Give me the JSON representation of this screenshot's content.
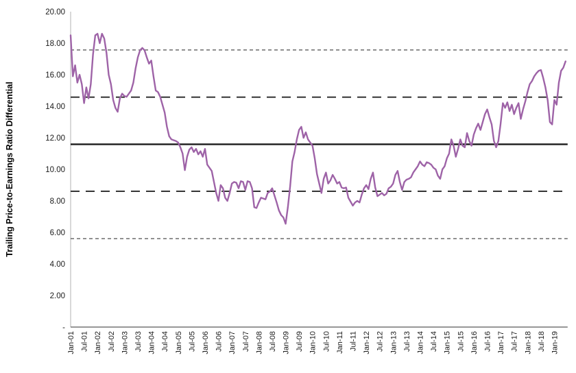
{
  "chart_data": {
    "type": "line",
    "title": "",
    "xlabel": "",
    "ylabel": "Trailing Price-to-Earnings Ratio Differential",
    "ylim": [
      0,
      20
    ],
    "ytick_step": 2,
    "ytick_labels": [
      "20.00",
      "18.00",
      "16.00",
      "14.00",
      "12.00",
      "10.00",
      "8.00",
      "6.00",
      "4.00",
      "2.00",
      "-"
    ],
    "ytick_values": [
      20,
      18,
      16,
      14,
      12,
      10,
      8,
      6,
      4,
      2,
      0
    ],
    "xtick_labels": [
      "Jan-01",
      "Jul-01",
      "Jan-02",
      "Jul-02",
      "Jan-03",
      "Jul-03",
      "Jan-04",
      "Jul-04",
      "Jan-05",
      "Jul-05",
      "Jan-06",
      "Jul-06",
      "Jan-07",
      "Jul-07",
      "Jan-08",
      "Jul-08",
      "Jan-09",
      "Jul-09",
      "Jan-10",
      "Jul-10",
      "Jan-11",
      "Jul-11",
      "Jan-12",
      "Jul-12",
      "Jan-13",
      "Jul-13",
      "Jan-14",
      "Jul-14",
      "Jan-15",
      "Jul-15",
      "Jan-16",
      "Jul-16",
      "Jan-17",
      "Jul-17",
      "Jan-18",
      "Jul-18",
      "Jan-19"
    ],
    "xtick_month_indices": [
      0,
      6,
      12,
      18,
      24,
      30,
      36,
      42,
      48,
      54,
      60,
      66,
      72,
      78,
      84,
      90,
      96,
      102,
      108,
      114,
      120,
      126,
      132,
      138,
      144,
      150,
      156,
      162,
      168,
      174,
      180,
      186,
      192,
      198,
      204,
      210,
      216
    ],
    "x_frequency": "monthly",
    "x_start_label": "Jan-01",
    "x_end_label": "Jun-19",
    "grid": "off",
    "legend_position": "none",
    "series": [
      {
        "name": "trailing-pe-ratio-differential",
        "color": "#9E63A7",
        "values": [
          18.5,
          15.9,
          16.6,
          15.5,
          16.0,
          15.4,
          14.2,
          15.2,
          14.5,
          15.4,
          17.3,
          18.5,
          18.6,
          18.0,
          18.6,
          18.3,
          17.4,
          16.0,
          15.4,
          14.4,
          13.9,
          13.65,
          14.5,
          14.8,
          14.65,
          14.6,
          14.8,
          15.0,
          15.5,
          16.4,
          17.1,
          17.55,
          17.7,
          17.55,
          17.1,
          16.7,
          16.9,
          15.9,
          15.0,
          14.9,
          14.6,
          14.1,
          13.6,
          12.7,
          12.1,
          11.9,
          11.85,
          11.8,
          11.7,
          11.4,
          11.0,
          9.95,
          10.8,
          11.25,
          11.4,
          11.1,
          11.3,
          10.95,
          11.15,
          10.8,
          11.3,
          10.3,
          10.1,
          9.9,
          9.2,
          8.5,
          8.0,
          9.0,
          8.8,
          8.2,
          8.0,
          8.5,
          9.1,
          9.2,
          9.15,
          8.8,
          9.25,
          9.2,
          8.7,
          9.25,
          9.2,
          8.8,
          7.6,
          7.55,
          7.9,
          8.2,
          8.15,
          8.1,
          8.5,
          8.6,
          8.8,
          8.35,
          7.9,
          7.4,
          7.1,
          6.95,
          6.55,
          7.6,
          8.9,
          10.5,
          11.1,
          11.9,
          12.5,
          12.7,
          12.0,
          12.35,
          11.9,
          11.7,
          11.5,
          10.7,
          9.7,
          9.1,
          8.5,
          9.4,
          9.8,
          9.1,
          9.3,
          9.65,
          9.4,
          9.1,
          9.2,
          8.85,
          8.8,
          8.85,
          8.2,
          7.95,
          7.7,
          7.9,
          8.0,
          7.9,
          8.4,
          8.8,
          9.0,
          8.75,
          9.4,
          9.8,
          8.85,
          8.3,
          8.4,
          8.5,
          8.35,
          8.45,
          8.8,
          8.9,
          9.1,
          9.65,
          9.9,
          9.2,
          8.7,
          9.2,
          9.35,
          9.4,
          9.5,
          9.8,
          10.0,
          10.2,
          10.5,
          10.3,
          10.2,
          10.45,
          10.4,
          10.3,
          10.1,
          10.0,
          9.6,
          9.4,
          10.0,
          10.2,
          10.7,
          11.0,
          11.9,
          11.5,
          10.8,
          11.3,
          11.9,
          11.5,
          11.4,
          12.3,
          11.8,
          11.5,
          12.2,
          12.6,
          12.9,
          12.5,
          13.0,
          13.5,
          13.8,
          13.3,
          12.85,
          11.8,
          11.4,
          11.8,
          12.9,
          14.2,
          13.9,
          14.25,
          13.7,
          14.1,
          13.5,
          13.9,
          14.2,
          13.2,
          13.8,
          14.3,
          14.9,
          15.4,
          15.6,
          15.9,
          16.1,
          16.25,
          16.3,
          15.8,
          15.2,
          14.4,
          13.0,
          12.85,
          14.4,
          14.1,
          15.5,
          16.25,
          16.45,
          16.85
        ]
      }
    ],
    "reference_lines": [
      {
        "name": "mean-line",
        "value": 11.59,
        "style": "solid",
        "color": "#1A1A1A",
        "width": 2.3
      },
      {
        "name": "plus-1-sd-line",
        "value": 14.58,
        "style": "long-dash",
        "color": "#262626",
        "width": 1.9
      },
      {
        "name": "minus-1-sd-line",
        "value": 8.61,
        "style": "long-dash",
        "color": "#262626",
        "width": 1.9
      },
      {
        "name": "plus-2-sd-line",
        "value": 17.57,
        "style": "short-dash",
        "color": "#4D4D4D",
        "width": 1.2
      },
      {
        "name": "minus-2-sd-line",
        "value": 5.61,
        "style": "short-dash",
        "color": "#4D4D4D",
        "width": 1.2
      }
    ],
    "axis_colors": {
      "y_axis_line": "#BFBFBF",
      "x_axis_line": "#595959",
      "tick_text": "#1A1A1A"
    }
  }
}
